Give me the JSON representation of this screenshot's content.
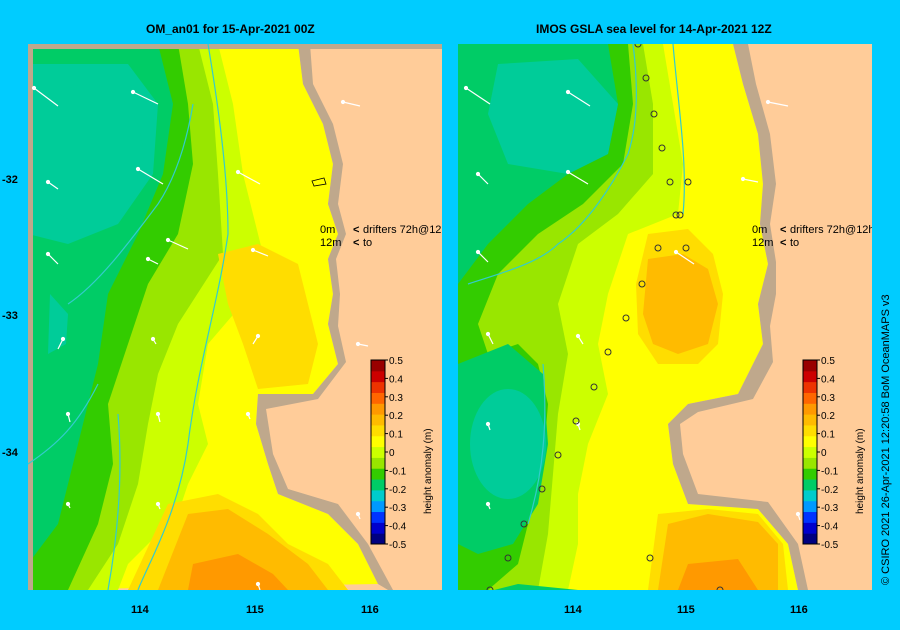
{
  "panels": [
    {
      "title": "OM_an01  for 15-Apr-2021 00Z"
    },
    {
      "title": "IMOS GSLA sea level  for 14-Apr-2021 12Z"
    }
  ],
  "legend": {
    "row1_depth": "0m",
    "row1_text": "drifters 72h@12h",
    "row2_depth": "12m",
    "row2_text": "to",
    "row1_color": "#ff33ff",
    "row2_color": "#000000"
  },
  "axes": {
    "lat_ticks": [
      "-32",
      "-33",
      "-34"
    ],
    "lon_ticks": [
      "114",
      "115",
      "116"
    ]
  },
  "colorbar": {
    "label": "height anomaly (m)",
    "ticks": [
      "0.5",
      "0.4",
      "0.3",
      "0.2",
      "0.1",
      "0",
      "-0.1",
      "-0.2",
      "-0.3",
      "-0.4",
      "-0.5"
    ],
    "colors": [
      "#000080",
      "#0000cc",
      "#0033ff",
      "#0099ff",
      "#00cccc",
      "#00cc66",
      "#33cc00",
      "#99e600",
      "#ccff00",
      "#ffff00",
      "#ffdd00",
      "#ffbb00",
      "#ff9900",
      "#ff6600",
      "#ee3300",
      "#cc0000",
      "#990000"
    ]
  },
  "credit": "© CSIRO 2021   26-Apr-2021 12:20:58 BoM OceanMAPS v3",
  "colors": {
    "land": "#ffcc99",
    "coast": "#bfa88c",
    "frame": "#00ccff"
  }
}
